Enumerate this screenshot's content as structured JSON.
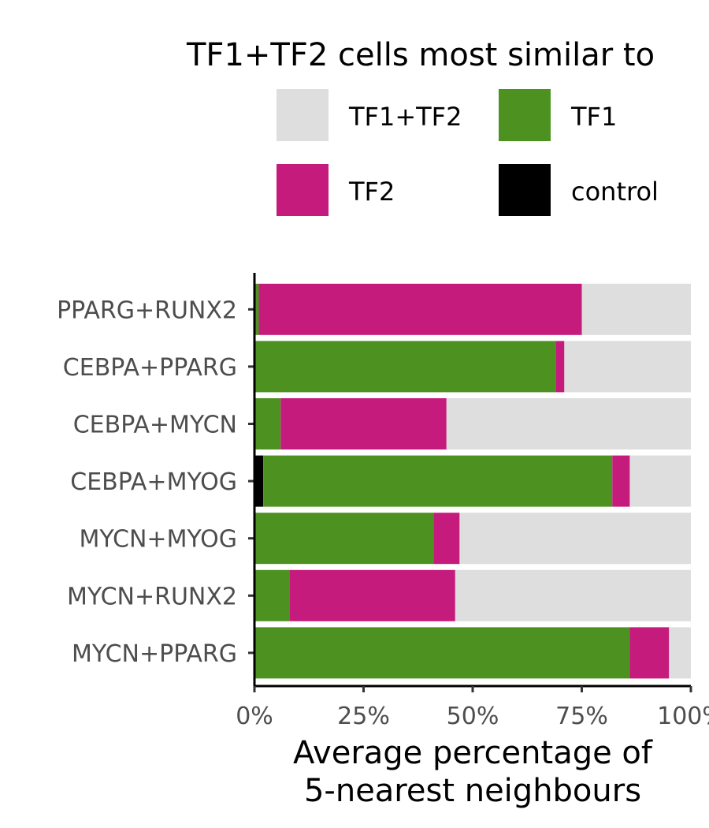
{
  "chart_data": {
    "type": "bar",
    "orientation": "horizontal",
    "stacked": true,
    "legend_title": "TF1+TF2 cells most similar to",
    "legend_position": "top",
    "xlabel": "Average percentage of",
    "xlabel_line2": "5-nearest neighbours",
    "xlim": [
      0,
      100
    ],
    "x_ticks": [
      "0%",
      "25%",
      "50%",
      "75%",
      "100%"
    ],
    "categories": [
      "PPARG+RUNX2",
      "CEBPA+PPARG",
      "CEBPA+MYCN",
      "CEBPA+MYOG",
      "MYCN+MYOG",
      "MYCN+RUNX2",
      "MYCN+PPARG"
    ],
    "series": [
      {
        "name": "control",
        "color": "#000000",
        "values": [
          0,
          0,
          0,
          2,
          0,
          0,
          0
        ]
      },
      {
        "name": "TF1",
        "color": "#4d9221",
        "values": [
          1,
          69,
          6,
          80,
          41,
          8,
          86
        ]
      },
      {
        "name": "TF2",
        "color": "#c51b7d",
        "values": [
          74,
          2,
          38,
          4,
          6,
          38,
          9
        ]
      },
      {
        "name": "TF1+TF2",
        "color": "#dedede",
        "values": [
          25,
          29,
          56,
          14,
          53,
          54,
          5
        ]
      }
    ],
    "legend_order": [
      "TF1+TF2",
      "TF1",
      "TF2",
      "control"
    ],
    "grid": false
  }
}
